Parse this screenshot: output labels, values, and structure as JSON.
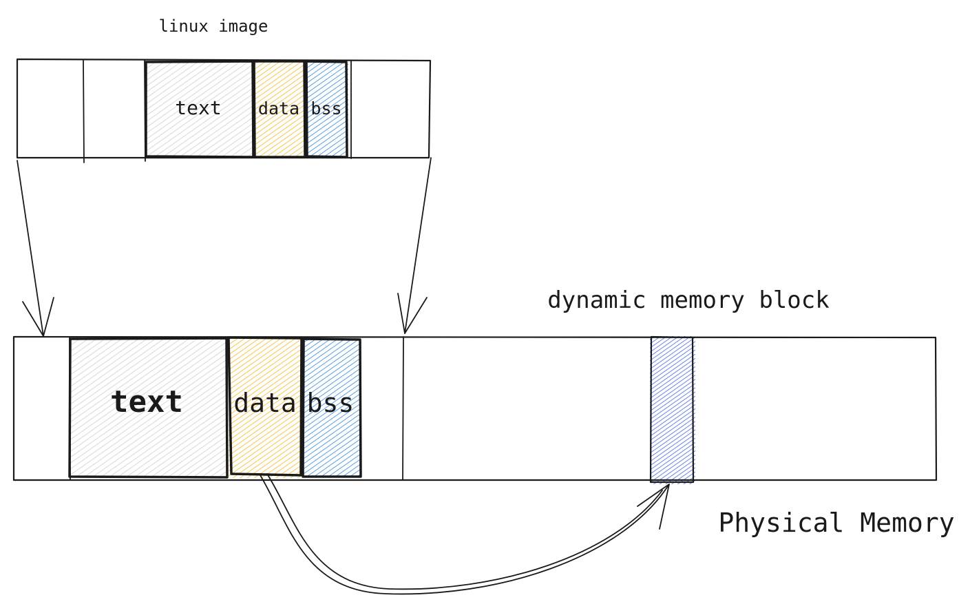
{
  "linux_image": {
    "title": "linux image",
    "segments": {
      "text": "text",
      "data": "data",
      "bss": "bss"
    }
  },
  "physical_memory": {
    "title": "Physical Memory",
    "dynamic_block_label": "dynamic memory block",
    "segments": {
      "text": "text",
      "data": "data",
      "bss": "bss"
    }
  },
  "colors": {
    "text_segment": "#d2d2d2",
    "data_segment": "#f5b71f",
    "bss_segment": "#2f86dd",
    "dynamic_block": "#3b5be0",
    "stroke": "#1a1a1a"
  }
}
